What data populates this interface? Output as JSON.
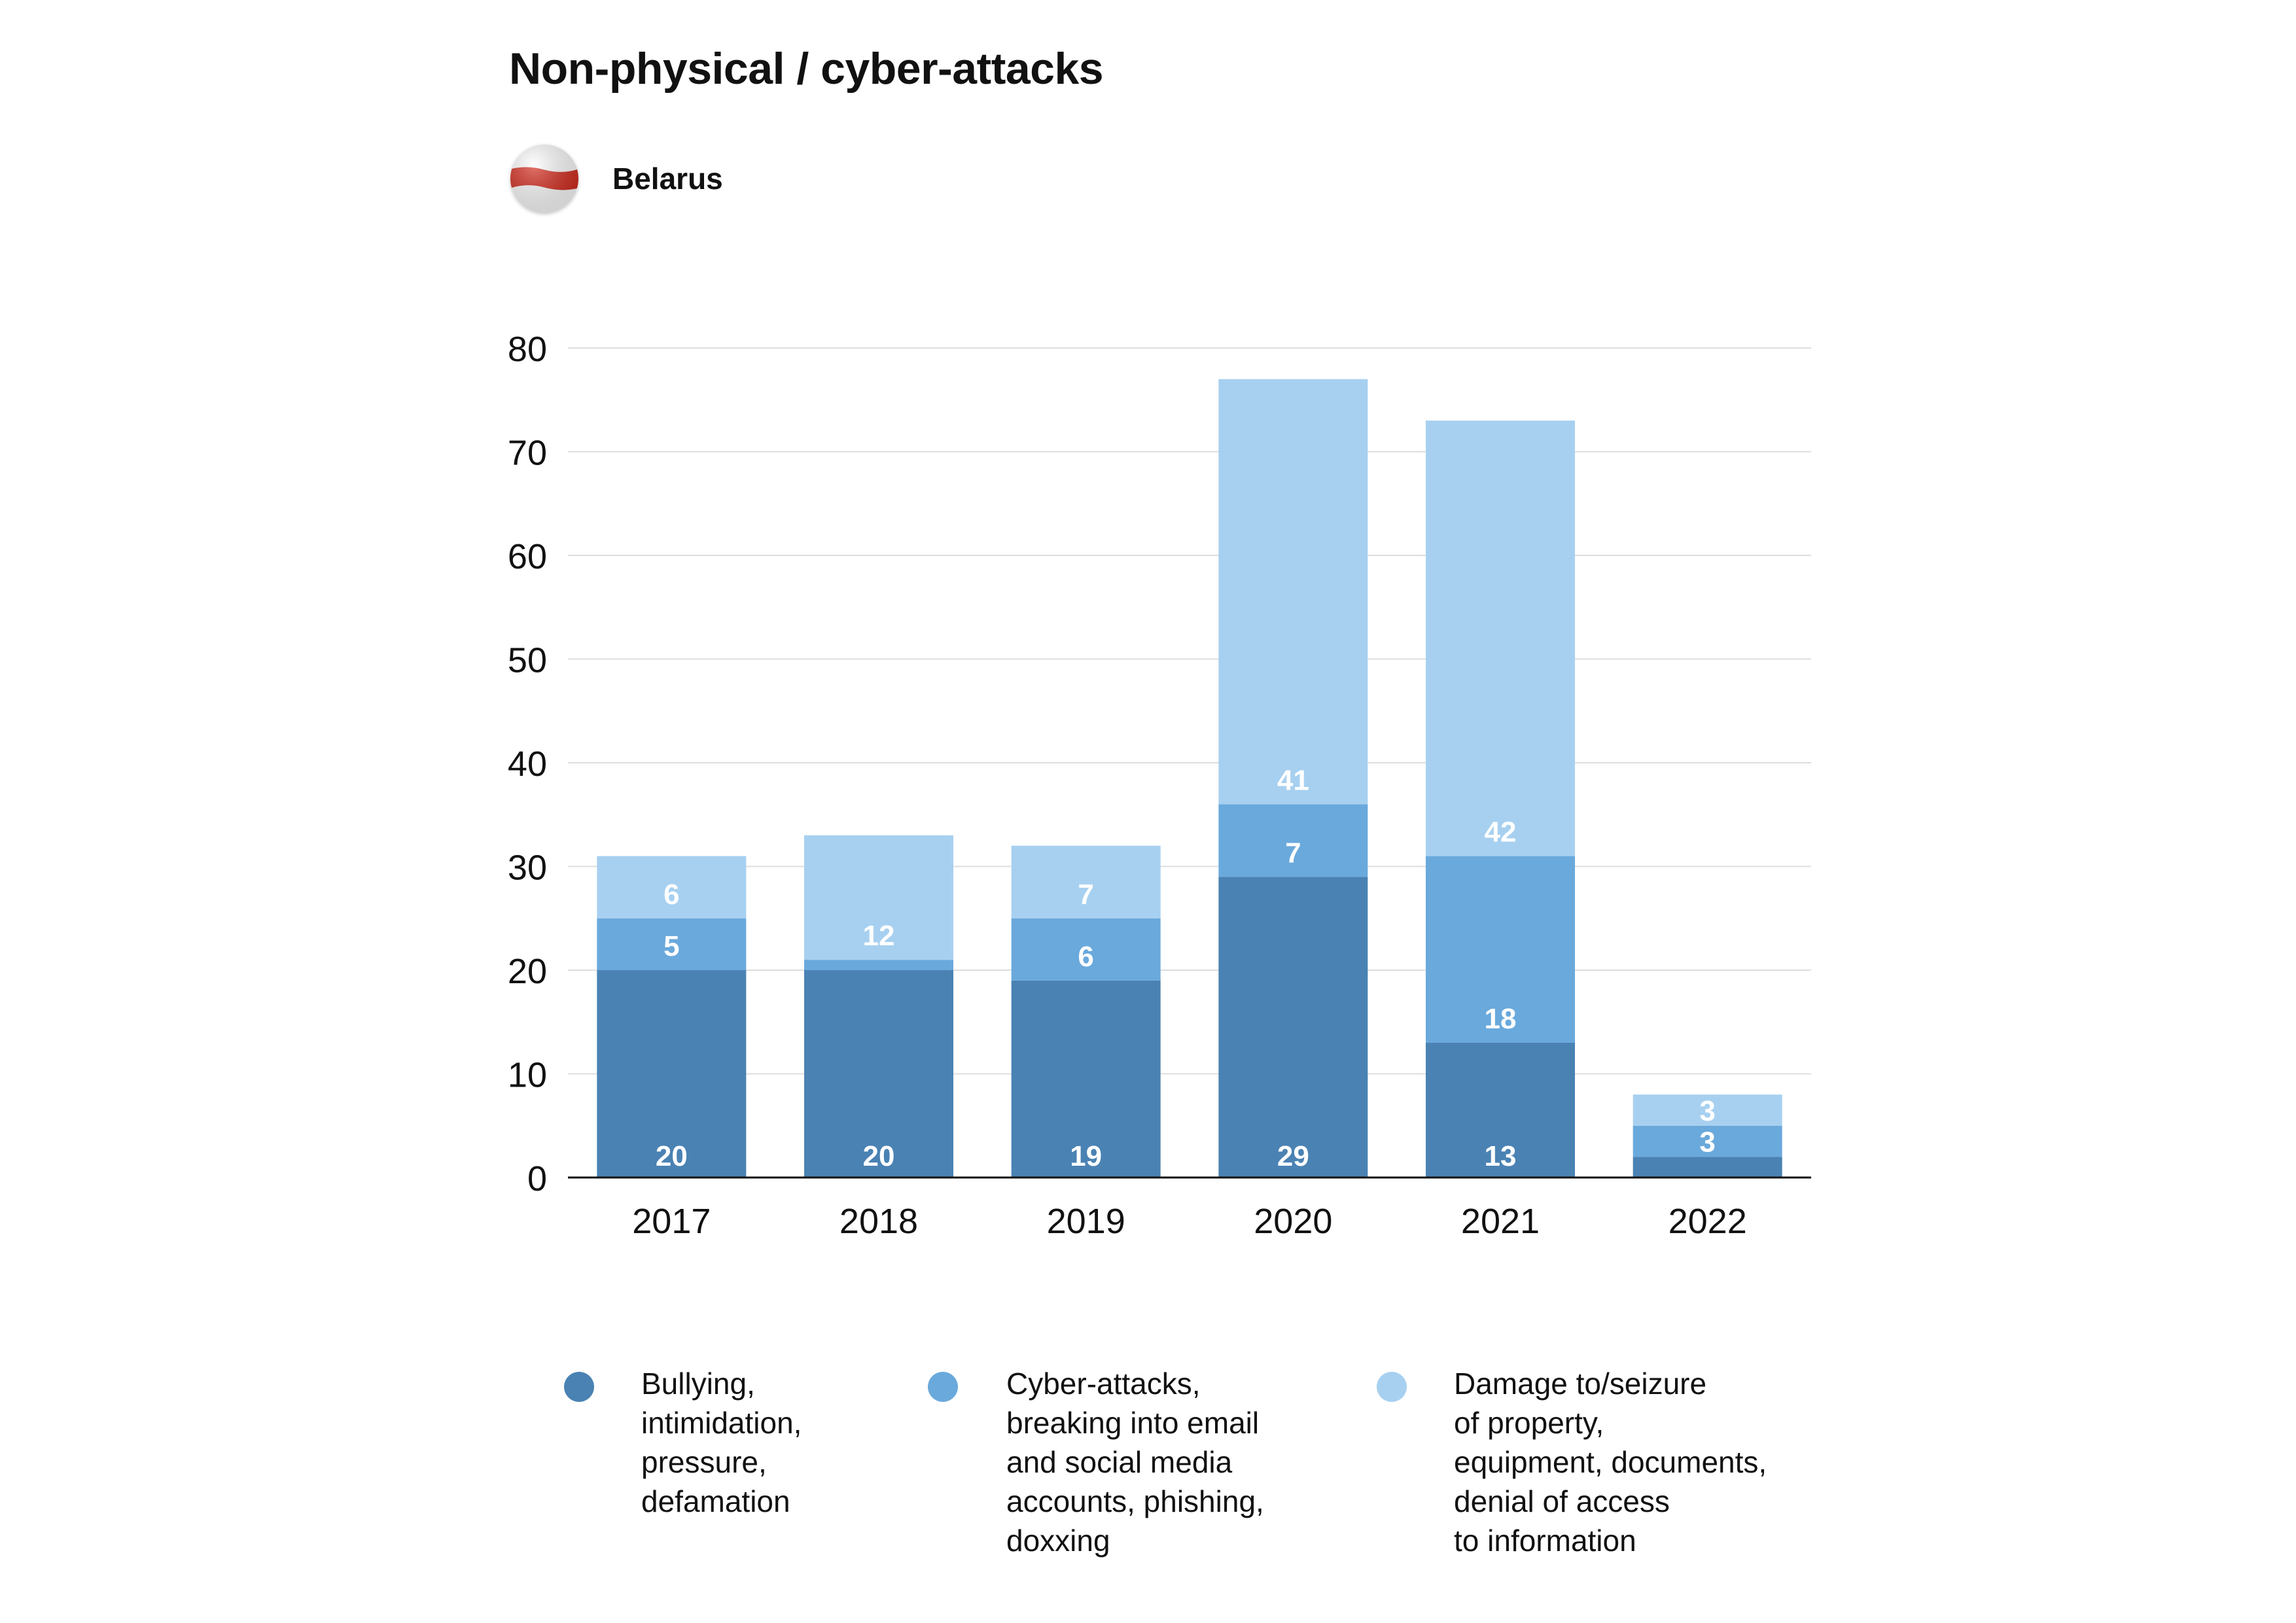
{
  "title": "Non-physical / cyber-attacks",
  "country": {
    "name": "Belarus",
    "flag_icon": "belarus-white-red-white-flag-icon",
    "flag_colors": [
      "#ffffff",
      "#d52b1e",
      "#ffffff"
    ]
  },
  "chart_data": {
    "type": "bar",
    "stacked": true,
    "categories": [
      "2017",
      "2018",
      "2019",
      "2020",
      "2021",
      "2022"
    ],
    "ylim": [
      0,
      80
    ],
    "yticks": [
      0,
      10,
      20,
      30,
      40,
      50,
      60,
      70,
      80
    ],
    "grid": true,
    "legend_position": "bottom",
    "series": [
      {
        "name": "Bullying,\nintimidation,\npressure,\ndefamation",
        "color": "#4a82b3",
        "values": [
          20,
          20,
          19,
          29,
          13,
          2
        ],
        "labels": [
          "20",
          "20",
          "19",
          "29",
          "13",
          ""
        ]
      },
      {
        "name": "Cyber-attacks,\nbreaking into email\nand social media\naccounts, phishing,\ndoxxing",
        "color": "#6aa9dc",
        "values": [
          5,
          1,
          6,
          7,
          18,
          3
        ],
        "labels": [
          "5",
          "",
          "6",
          "7",
          "18",
          "3"
        ]
      },
      {
        "name": "Damage to/seizure\nof property,\nequipment, documents,\ndenial of access\nto information",
        "color": "#a7d0f0",
        "values": [
          6,
          12,
          7,
          41,
          42,
          3
        ],
        "labels": [
          "6",
          "12",
          "7",
          "41",
          "42",
          "3"
        ]
      }
    ]
  }
}
